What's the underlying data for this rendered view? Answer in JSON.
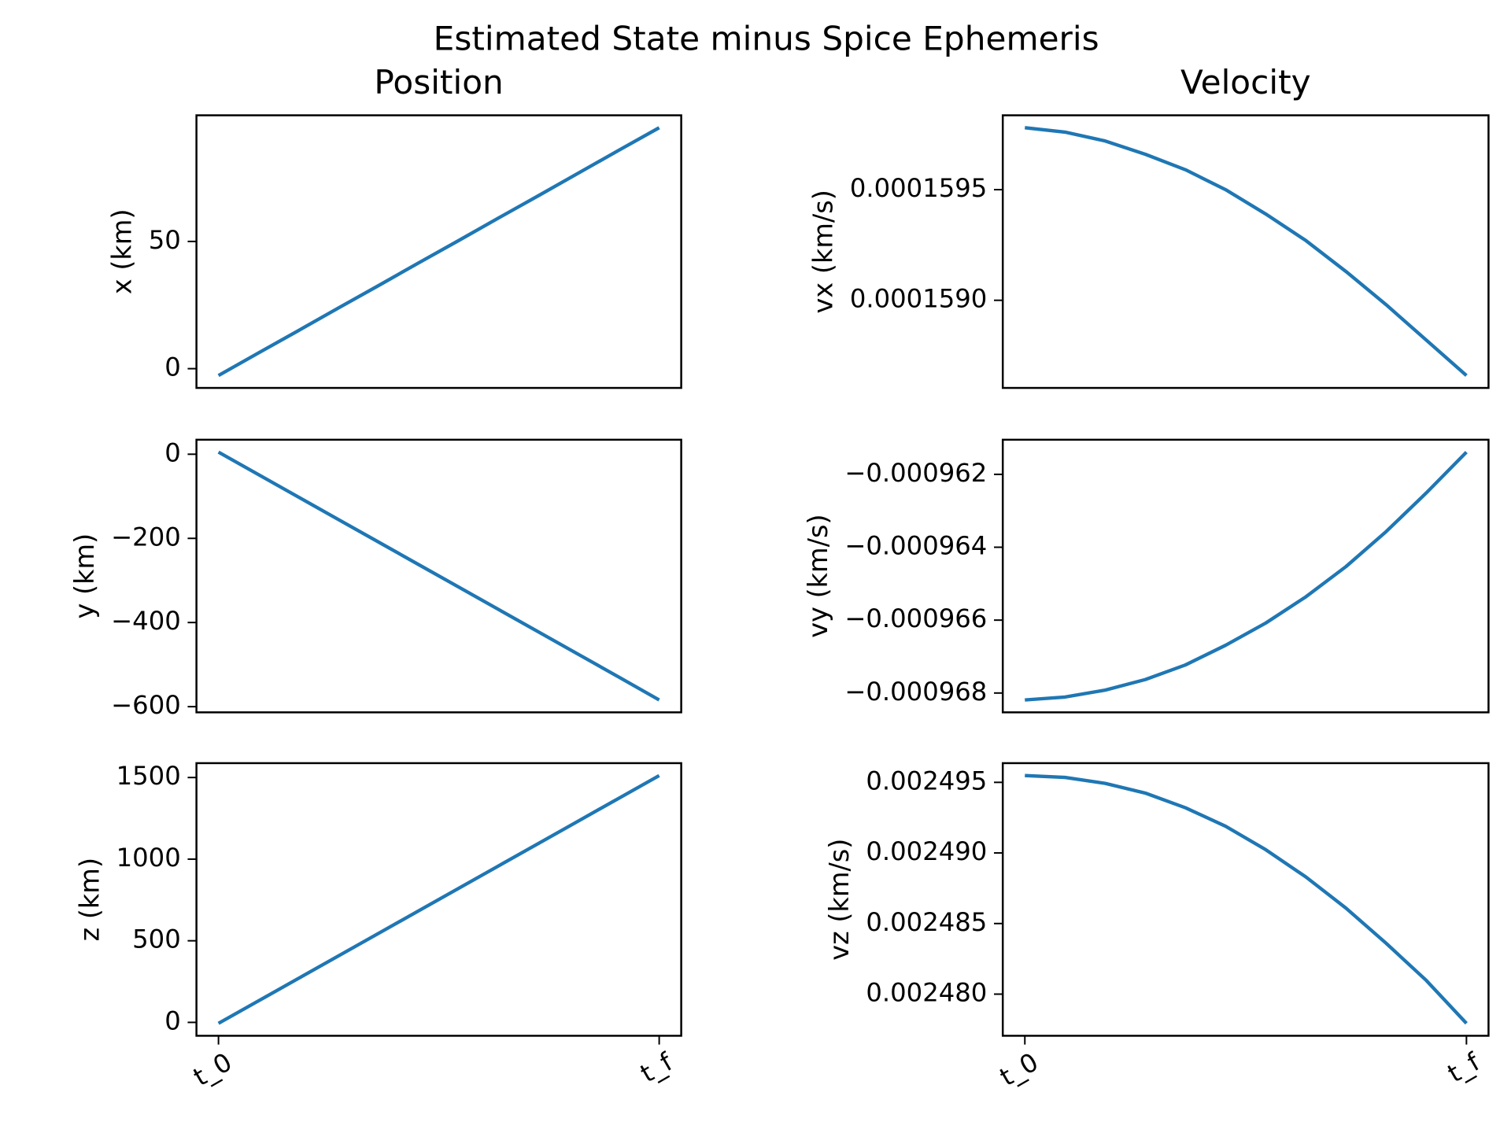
{
  "title": "Estimated State minus Spice Ephemeris",
  "chart_data": [
    {
      "type": "line",
      "title": "Position",
      "ylabel": "x (km)",
      "color": "#1f77b4",
      "x": [
        0,
        1,
        2,
        3,
        4,
        5,
        6,
        7,
        8,
        9,
        10,
        11
      ],
      "values": [
        -2.7,
        6.2,
        15.0,
        23.9,
        32.7,
        41.6,
        50.4,
        59.3,
        68.1,
        77.0,
        85.9,
        94.7
      ],
      "xlim": [
        -0.55,
        11.55
      ],
      "ylim": [
        -7.57,
        99.57
      ],
      "yticks": [
        0,
        50
      ]
    },
    {
      "type": "line",
      "title": "Velocity",
      "ylabel": "vx (km/s)",
      "color": "#1f77b4",
      "x": [
        0,
        1,
        2,
        3,
        4,
        5,
        6,
        7,
        8,
        9,
        10,
        11
      ],
      "values": [
        0.00015978,
        0.00015976,
        0.00015972,
        0.00015966,
        0.00015959,
        0.0001595,
        0.00015939,
        0.00015927,
        0.00015913,
        0.00015898,
        0.00015882,
        0.00015866
      ],
      "xlim": [
        -0.55,
        11.55
      ],
      "ylim": [
        0.000158604,
        0.000159836
      ],
      "yticks": [
        {
          "value": 0.000159,
          "label": "0.0001590"
        },
        0.0001595
      ]
    },
    {
      "type": "line",
      "ylabel": "y (km)",
      "color": "#1f77b4",
      "x": [
        0,
        1,
        2,
        3,
        4,
        5,
        6,
        7,
        8,
        9,
        10,
        11
      ],
      "values": [
        5,
        -48.5,
        -102,
        -155.5,
        -209,
        -262.5,
        -316,
        -369.5,
        -423,
        -476.5,
        -530,
        -584
      ],
      "xlim": [
        -0.55,
        11.55
      ],
      "ylim": [
        -613.5,
        34.5
      ],
      "yticks": [
        0,
        {
          "value": -200,
          "label": "−200"
        },
        {
          "value": -400,
          "label": "−400"
        },
        {
          "value": -600,
          "label": "−600"
        }
      ]
    },
    {
      "type": "line",
      "ylabel": "vy (km/s)",
      "color": "#1f77b4",
      "x": [
        0,
        1,
        2,
        3,
        4,
        5,
        6,
        7,
        8,
        9,
        10,
        11
      ],
      "values": [
        -0.00096819,
        -0.00096811,
        -0.00096792,
        -0.00096763,
        -0.00096723,
        -0.00096669,
        -0.00096608,
        -0.00096536,
        -0.00096453,
        -0.00096357,
        -0.00096251,
        -0.00096139
      ],
      "xlim": [
        -0.55,
        11.55
      ],
      "ylim": [
        -0.00096853,
        -0.00096105
      ],
      "yticks": [
        {
          "value": -0.000968,
          "label": "−0.000968"
        },
        {
          "value": -0.000966,
          "label": "−0.000966"
        },
        {
          "value": -0.000964,
          "label": "−0.000964"
        },
        {
          "value": -0.000962,
          "label": "−0.000962"
        }
      ]
    },
    {
      "type": "line",
      "ylabel": "z (km)",
      "color": "#1f77b4",
      "x": [
        0,
        1,
        2,
        3,
        4,
        5,
        6,
        7,
        8,
        9,
        10,
        11
      ],
      "values": [
        -6,
        132,
        270,
        408,
        546,
        684,
        822,
        960,
        1098,
        1236,
        1374,
        1512
      ],
      "xlim": [
        -0.55,
        11.55
      ],
      "ylim": [
        -82,
        1588
      ],
      "yticks": [
        0,
        500,
        1000,
        1500
      ],
      "xticks": [
        {
          "value": 0,
          "label": "t_0"
        },
        {
          "value": 11,
          "label": "t_f"
        }
      ]
    },
    {
      "type": "line",
      "ylabel": "vz (km/s)",
      "color": "#1f77b4",
      "x": [
        0,
        1,
        2,
        3,
        4,
        5,
        6,
        7,
        8,
        9,
        10,
        11
      ],
      "values": [
        0.00249548,
        0.00249535,
        0.00249493,
        0.00249424,
        0.0024932,
        0.00249189,
        0.00249023,
        0.0024883,
        0.00248609,
        0.0024836,
        0.00248097,
        0.00247793
      ],
      "xlim": [
        -0.55,
        11.55
      ],
      "ylim": [
        0.00247705,
        0.00249636
      ],
      "yticks": [
        {
          "value": 0.00248,
          "label": "0.002480"
        },
        0.002485,
        {
          "value": 0.00249,
          "label": "0.002490"
        },
        0.002495
      ],
      "xticks": [
        {
          "value": 0,
          "label": "t_0"
        },
        {
          "value": 11,
          "label": "t_f"
        }
      ]
    }
  ]
}
